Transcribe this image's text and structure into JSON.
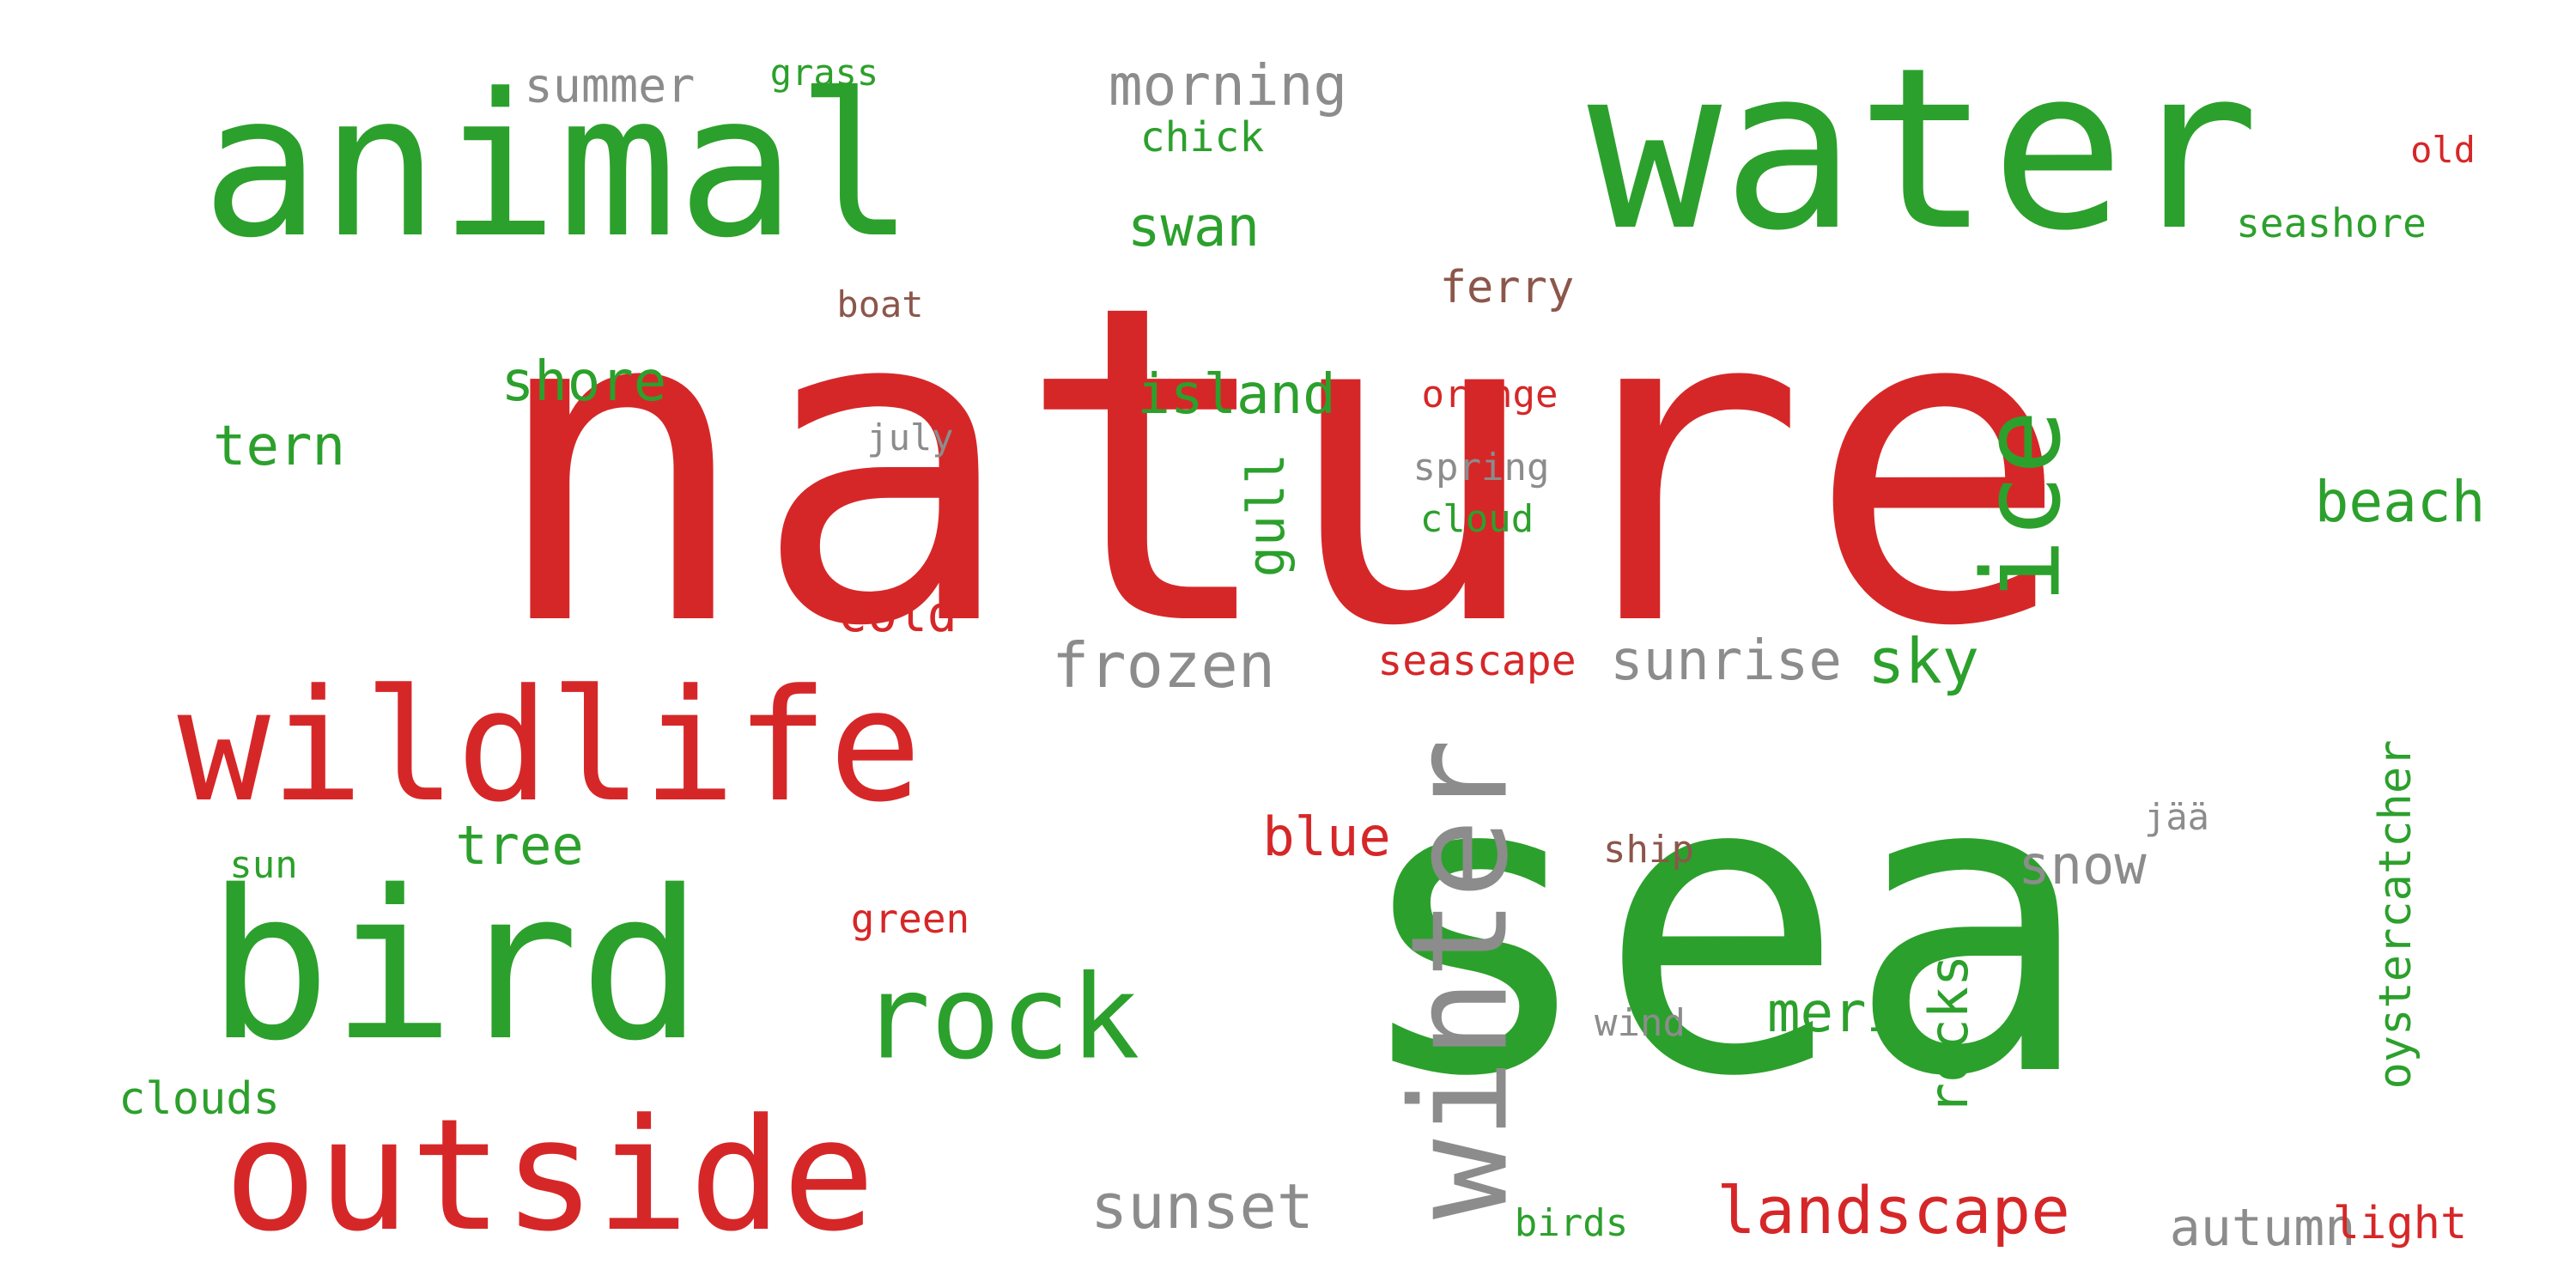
{
  "palette": {
    "red": "#d62728",
    "green": "#2ca02c",
    "gray": "#8c8c8c",
    "brown": "#8c564b"
  },
  "words": {
    "nature": "nature",
    "sea": "sea",
    "water": "water",
    "animal": "animal",
    "bird": "bird",
    "wildlife": "wildlife",
    "outside": "outside",
    "winter": "winter",
    "rock": "rock",
    "ice": "ice",
    "morning": "morning",
    "summer": "summer",
    "grass": "grass",
    "chick": "chick",
    "swan": "swan",
    "old": "old",
    "seashore": "seashore",
    "boat": "boat",
    "ferry": "ferry",
    "shore": "shore",
    "island": "island",
    "orange": "orange",
    "tern": "tern",
    "july": "july",
    "spring": "spring",
    "cloud": "cloud",
    "gull": "gull",
    "beach": "beach",
    "cold": "cold",
    "frozen": "frozen",
    "seascape": "seascape",
    "sunrise": "sunrise",
    "sky": "sky",
    "tree": "tree",
    "sun": "sun",
    "blue": "blue",
    "green": "green",
    "ship": "ship",
    "jaa": "jää",
    "snow": "snow",
    "meri": "meri",
    "rocks": "rocks",
    "oystercatcher": "oystercatcher",
    "wind": "wind",
    "clouds": "clouds",
    "sunset": "sunset",
    "landscape": "landscape",
    "autumn": "autumn",
    "light": "light",
    "birds": "birds"
  }
}
